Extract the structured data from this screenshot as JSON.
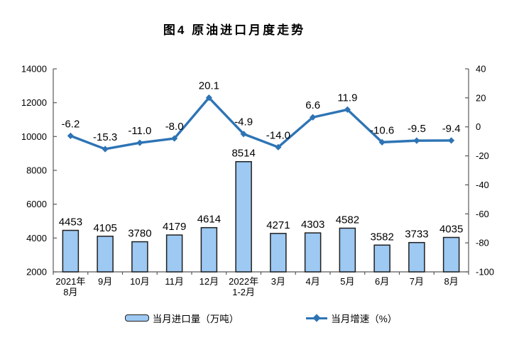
{
  "chart_data": {
    "type": "bar",
    "title": "图4 原油进口月度走势",
    "categories": [
      "2021年\n8月",
      "9月",
      "10月",
      "11月",
      "12月",
      "2022年\n1-2月",
      "3月",
      "4月",
      "5月",
      "6月",
      "7月",
      "8月"
    ],
    "series": [
      {
        "name": "当月进口量（万吨）",
        "type": "bar",
        "axis": "left",
        "values": [
          4453,
          4105,
          3780,
          4179,
          4614,
          8514,
          4271,
          4303,
          4582,
          3582,
          3733,
          4035
        ],
        "color": "#9DC9F3",
        "border_color": "#1F1F1F"
      },
      {
        "name": "当月增速（%）",
        "type": "line",
        "axis": "right",
        "values": [
          -6.2,
          -15.3,
          -11.0,
          -8.0,
          20.1,
          -4.9,
          -14.0,
          6.6,
          11.9,
          -10.6,
          -9.5,
          -9.4
        ],
        "color": "#2E74B5",
        "label_decimals": 1,
        "marker": "diamond"
      }
    ],
    "left_axis": {
      "min": 2000,
      "max": 14000,
      "step": 2000,
      "ticks": [
        14000,
        12000,
        10000,
        8000,
        6000,
        4000,
        2000
      ]
    },
    "right_axis": {
      "min": -100,
      "max": 40,
      "step": 20,
      "ticks": [
        40,
        20,
        0,
        -20,
        -40,
        -60,
        -80,
        -100
      ]
    },
    "grid": false,
    "legend_position": "bottom",
    "axis_color": "#595959",
    "text_color": "#000000",
    "background": "#FFFFFF"
  }
}
